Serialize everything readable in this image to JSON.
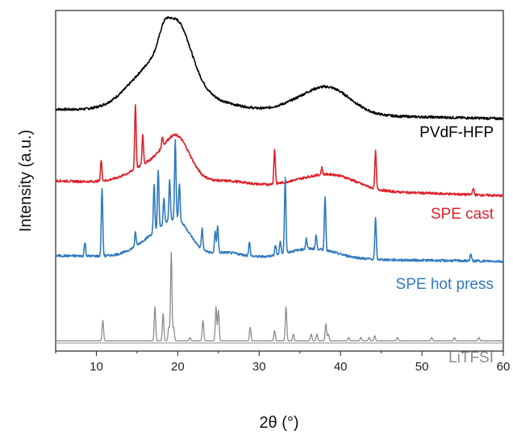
{
  "chart_data": {
    "type": "line",
    "title": "",
    "xlabel": "2θ (°)",
    "ylabel": "Intensity (a.u.)",
    "xlim": [
      5,
      60
    ],
    "ylim": [
      0,
      100
    ],
    "xticks": [
      10,
      20,
      30,
      40,
      50,
      60
    ],
    "xtick_labels": [
      "10",
      "20",
      "30",
      "40",
      "50",
      "60"
    ],
    "yticks_shown": false,
    "grid": false,
    "legend": "inline labels next to each trace",
    "series": [
      {
        "name": "PVdF-HFP",
        "color": "#000000",
        "baseline": 71,
        "broad": [
          [
            17.5,
            3.2,
            14
          ],
          [
            20.0,
            1.6,
            15
          ],
          [
            18.3,
            0.6,
            4
          ],
          [
            22.5,
            2.0,
            3
          ],
          [
            26.5,
            2.5,
            2
          ],
          [
            36.5,
            3.5,
            4.5
          ],
          [
            39.0,
            2.5,
            4.5
          ]
        ],
        "peaks": [],
        "baseline_slope": -0.05
      },
      {
        "name": "SPE cast",
        "color": "#e0202a",
        "baseline": 50,
        "broad": [
          [
            17.8,
            3.0,
            7
          ],
          [
            20.0,
            1.5,
            9
          ],
          [
            26.5,
            2.5,
            1.5
          ],
          [
            37.0,
            3.5,
            3.2
          ],
          [
            40.0,
            2.5,
            2
          ]
        ],
        "peaks": [
          [
            10.6,
            6
          ],
          [
            14.8,
            19
          ],
          [
            15.7,
            9
          ],
          [
            18.1,
            3
          ],
          [
            31.9,
            10
          ],
          [
            37.7,
            2
          ],
          [
            44.3,
            11
          ],
          [
            56.3,
            2
          ]
        ],
        "baseline_slope": -0.08
      },
      {
        "name": "SPE hot press",
        "color": "#2f7ac0",
        "baseline": 28,
        "broad": [
          [
            18.0,
            2.5,
            7
          ],
          [
            20.2,
            1.5,
            6
          ],
          [
            36.5,
            3.0,
            3
          ],
          [
            26.0,
            2.0,
            1.5
          ]
        ],
        "peaks": [
          [
            8.6,
            4
          ],
          [
            10.7,
            20
          ],
          [
            14.8,
            4
          ],
          [
            17.1,
            14
          ],
          [
            17.6,
            17
          ],
          [
            18.3,
            8
          ],
          [
            19.0,
            12
          ],
          [
            19.7,
            23
          ],
          [
            20.2,
            11
          ],
          [
            23.0,
            6
          ],
          [
            24.6,
            6
          ],
          [
            24.9,
            8
          ],
          [
            28.8,
            4
          ],
          [
            32.0,
            3
          ],
          [
            32.6,
            4
          ],
          [
            33.2,
            22
          ],
          [
            35.8,
            3
          ],
          [
            37.0,
            4
          ],
          [
            38.1,
            16
          ],
          [
            44.3,
            12
          ],
          [
            56.0,
            2
          ]
        ],
        "baseline_slope": -0.03
      },
      {
        "name": "LiTFSI",
        "color": "#8c8c8c",
        "baseline": 3,
        "broad": [],
        "peaks": [
          [
            10.8,
            6
          ],
          [
            17.2,
            10
          ],
          [
            18.2,
            8
          ],
          [
            18.9,
            4
          ],
          [
            19.2,
            26
          ],
          [
            19.5,
            4
          ],
          [
            21.5,
            1
          ],
          [
            23.1,
            6
          ],
          [
            24.7,
            10
          ],
          [
            25.0,
            9
          ],
          [
            28.9,
            4
          ],
          [
            31.9,
            3
          ],
          [
            33.3,
            10
          ],
          [
            34.2,
            2
          ],
          [
            36.4,
            2
          ],
          [
            37.1,
            2
          ],
          [
            38.2,
            5
          ],
          [
            38.5,
            2
          ],
          [
            41.0,
            1
          ],
          [
            42.5,
            1
          ],
          [
            43.5,
            1
          ],
          [
            44.2,
            1.5
          ],
          [
            47.0,
            1
          ],
          [
            51.2,
            1
          ],
          [
            54.0,
            1
          ],
          [
            57.0,
            1
          ]
        ],
        "baseline_slope": 0
      }
    ]
  }
}
